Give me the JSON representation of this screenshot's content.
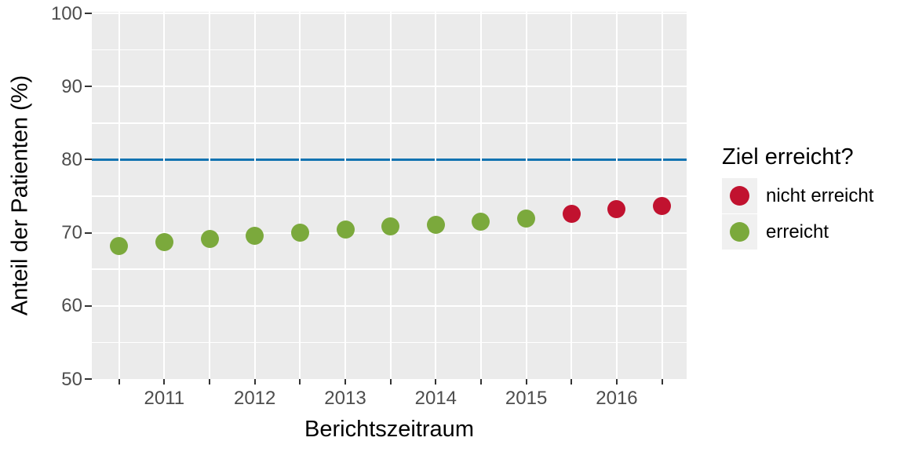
{
  "chart_data": {
    "type": "scatter",
    "title": "",
    "xlabel": "Berichtszeitraum",
    "ylabel": "Anteil der Patienten (%)",
    "xlim": [
      2010.2,
      2016.77
    ],
    "ylim": [
      50,
      100
    ],
    "grid": "on",
    "panel_background": "#EBEBEB",
    "y_ticks": [
      100,
      90,
      80,
      70,
      60,
      50
    ],
    "x_all_ticks": [
      2010.5,
      2011,
      2011.5,
      2012,
      2012.5,
      2013,
      2013.5,
      2014,
      2014.5,
      2015,
      2015.5,
      2016,
      2016.5
    ],
    "x_major_ticks": [
      {
        "value": 2011,
        "label": "2011"
      },
      {
        "value": 2012,
        "label": "2012"
      },
      {
        "value": 2013,
        "label": "2013"
      },
      {
        "value": 2014,
        "label": "2014"
      },
      {
        "value": 2015,
        "label": "2015"
      },
      {
        "value": 2016,
        "label": "2016"
      }
    ],
    "reference_line": {
      "y": 80,
      "color": "#1273B1"
    },
    "colors": {
      "erreicht": "#7BA93C",
      "nicht erreicht": "#C1122F"
    },
    "points": [
      {
        "x": 2010.5,
        "y": 68.2,
        "status": "erreicht"
      },
      {
        "x": 2011.0,
        "y": 68.7,
        "status": "erreicht"
      },
      {
        "x": 2011.5,
        "y": 69.2,
        "status": "erreicht"
      },
      {
        "x": 2012.0,
        "y": 69.6,
        "status": "erreicht"
      },
      {
        "x": 2012.5,
        "y": 70.0,
        "status": "erreicht"
      },
      {
        "x": 2013.0,
        "y": 70.4,
        "status": "erreicht"
      },
      {
        "x": 2013.5,
        "y": 70.9,
        "status": "erreicht"
      },
      {
        "x": 2014.0,
        "y": 71.1,
        "status": "erreicht"
      },
      {
        "x": 2014.5,
        "y": 71.5,
        "status": "erreicht"
      },
      {
        "x": 2015.0,
        "y": 71.9,
        "status": "erreicht"
      },
      {
        "x": 2015.5,
        "y": 72.6,
        "status": "nicht erreicht"
      },
      {
        "x": 2016.0,
        "y": 73.2,
        "status": "nicht erreicht"
      },
      {
        "x": 2016.5,
        "y": 73.7,
        "status": "nicht erreicht"
      }
    ],
    "legend": {
      "title": "Ziel erreicht?",
      "position": "right",
      "items": [
        {
          "label": "nicht erreicht",
          "color": "#C1122F"
        },
        {
          "label": "erreicht",
          "color": "#7BA93C"
        }
      ]
    }
  }
}
